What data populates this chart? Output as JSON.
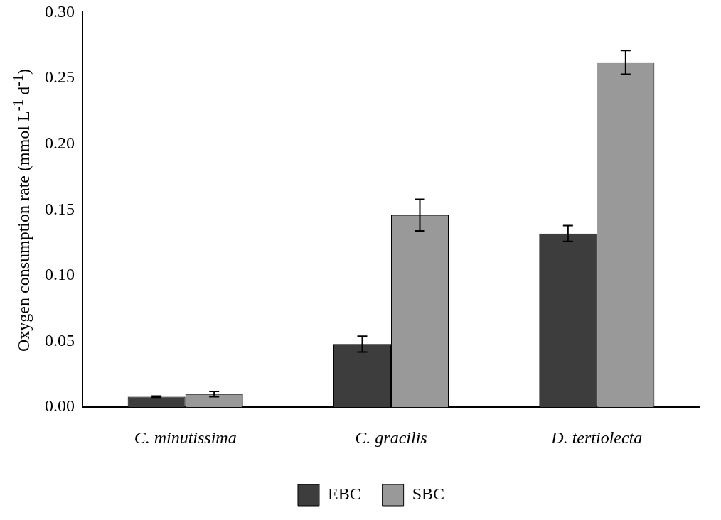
{
  "chart_data": {
    "type": "bar",
    "ylabel": "Oxygen consumption rate (mmol L$^{-1}$ d$^{-1}$)",
    "categories": [
      "C. minutissima",
      "C. gracilis",
      "D. tertiolecta"
    ],
    "series": [
      {
        "name": "EBC",
        "color": "#3d3d3d",
        "values": [
          0.008,
          0.048,
          0.132
        ],
        "errors": [
          0.0005,
          0.006,
          0.006
        ]
      },
      {
        "name": "SBC",
        "color": "#999999",
        "values": [
          0.01,
          0.146,
          0.262
        ],
        "errors": [
          0.002,
          0.012,
          0.009
        ]
      }
    ],
    "ylim": [
      0,
      0.3
    ],
    "yticks": [
      {
        "value": 0,
        "label": "0.00"
      },
      {
        "value": 0.05,
        "label": "0.05"
      },
      {
        "value": 0.1,
        "label": "0.10"
      },
      {
        "value": 0.15,
        "label": "0.15"
      },
      {
        "value": 0.2,
        "label": "0.20"
      },
      {
        "value": 0.25,
        "label": "0.25"
      },
      {
        "value": 0.3,
        "label": "0.30"
      }
    ],
    "grid": false,
    "legend": "bottom"
  }
}
